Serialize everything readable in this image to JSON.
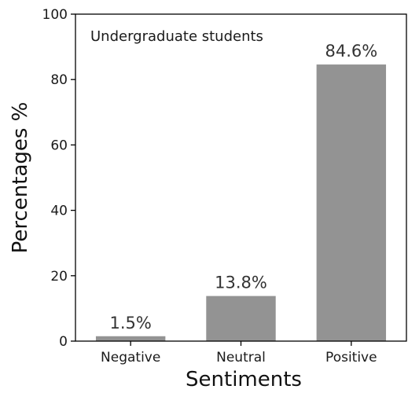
{
  "chart_data": {
    "type": "bar",
    "categories": [
      "Negative",
      "Neutral",
      "Positive"
    ],
    "values": [
      1.5,
      13.8,
      84.6
    ],
    "data_labels": [
      "1.5%",
      "13.8%",
      "84.6%"
    ],
    "annotation": "Undergraduate students",
    "xlabel": "Sentiments",
    "ylabel": "Percentages %",
    "ylim": [
      0,
      100
    ],
    "yticks": [
      0,
      20,
      40,
      60,
      80,
      100
    ],
    "grid": false,
    "bar_color": "#939393",
    "axis_color": "#000000"
  }
}
